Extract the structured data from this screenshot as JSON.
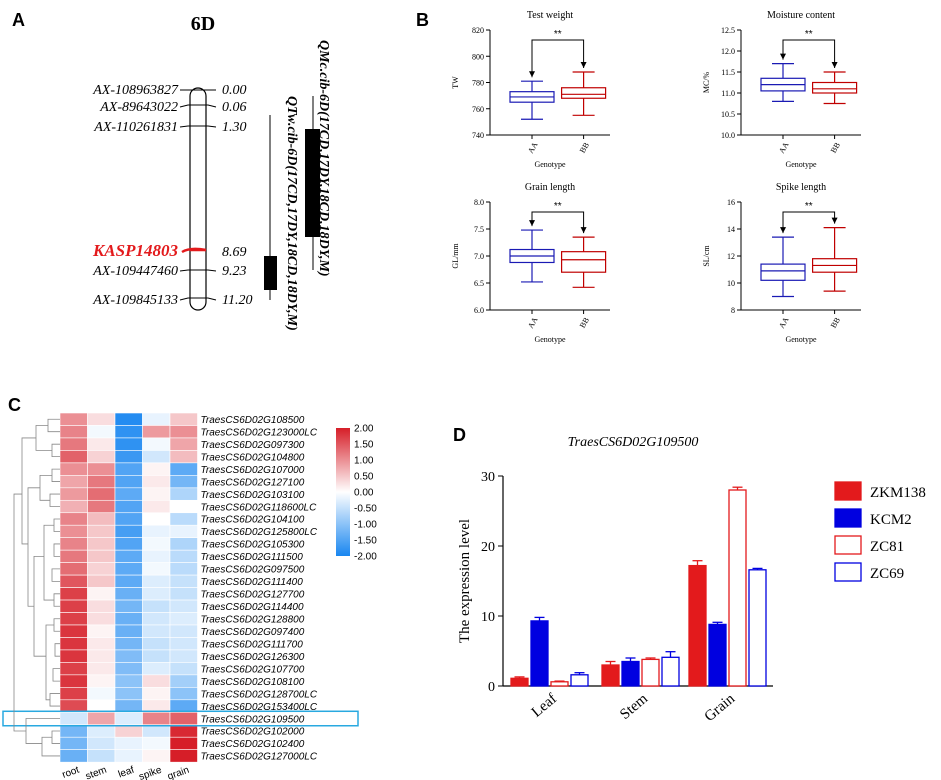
{
  "panel_letters": {
    "a": "A",
    "b": "B",
    "c": "C",
    "d": "D"
  },
  "colors": {
    "red": "#e31a1c",
    "blue": "#0000e0",
    "box_red": "#c00000",
    "box_blue": "#1a1ab4",
    "highlight": "#29a9e0"
  },
  "chart_data": [
    {
      "type": "genetic-map",
      "title": "6D",
      "markers": [
        {
          "name": "AX-108963827",
          "pos": "0.00",
          "highlight": false
        },
        {
          "name": "AX-89643022",
          "pos": "0.06",
          "highlight": false
        },
        {
          "name": "AX-110261831",
          "pos": "1.30",
          "highlight": false
        },
        {
          "name": "KASP14803",
          "pos": "8.69",
          "highlight": true
        },
        {
          "name": "AX-109447460",
          "pos": "9.23",
          "highlight": false
        },
        {
          "name": "AX-109845133",
          "pos": "11.20",
          "highlight": false
        }
      ],
      "qtls": [
        {
          "name": "QTw.cib-6D(17CD,17DY,18CD,18DY,M)"
        },
        {
          "name": "QMc.cib-6D(17CD,17DY,18CD,18DY,M)"
        }
      ]
    },
    {
      "type": "boxplot",
      "title": "Test weight",
      "ylabel": "TW",
      "xlabel": "Genotype",
      "ylim": [
        740,
        820
      ],
      "yticks": [
        740,
        760,
        780,
        800,
        820
      ],
      "ytick_labels": [
        "740",
        "760",
        "780",
        "800",
        "820"
      ],
      "categories": [
        "AA",
        "BB"
      ],
      "significance": "**",
      "groups": [
        {
          "name": "AA",
          "min": 752,
          "q1": 765,
          "median": 769,
          "q3": 773,
          "max": 781
        },
        {
          "name": "BB",
          "min": 755,
          "q1": 768,
          "median": 771,
          "q3": 776,
          "max": 788
        }
      ]
    },
    {
      "type": "boxplot",
      "title": "Moisture content",
      "ylabel": "MC/%",
      "xlabel": "Genotype",
      "ylim": [
        10.0,
        12.5
      ],
      "yticks": [
        10.0,
        10.5,
        11.0,
        11.5,
        12.0,
        12.5
      ],
      "ytick_labels": [
        "10.0",
        "10.5",
        "11.0",
        "11.5",
        "12.0",
        "12.5"
      ],
      "categories": [
        "AA",
        "BB"
      ],
      "significance": "**",
      "groups": [
        {
          "name": "AA",
          "min": 10.8,
          "q1": 11.05,
          "median": 11.2,
          "q3": 11.35,
          "max": 11.7
        },
        {
          "name": "BB",
          "min": 10.75,
          "q1": 11.0,
          "median": 11.1,
          "q3": 11.25,
          "max": 11.5
        }
      ]
    },
    {
      "type": "boxplot",
      "title": "Grain length",
      "ylabel": "GL/mm",
      "xlabel": "Genotype",
      "ylim": [
        6.0,
        8.0
      ],
      "yticks": [
        6.0,
        6.5,
        7.0,
        7.5,
        8.0
      ],
      "ytick_labels": [
        "6.0",
        "6.5",
        "7.0",
        "7.5",
        "8.0"
      ],
      "categories": [
        "AA",
        "BB"
      ],
      "significance": "**",
      "groups": [
        {
          "name": "AA",
          "min": 6.52,
          "q1": 6.88,
          "median": 7.0,
          "q3": 7.12,
          "max": 7.48
        },
        {
          "name": "BB",
          "min": 6.42,
          "q1": 6.7,
          "median": 6.93,
          "q3": 7.08,
          "max": 7.35
        }
      ]
    },
    {
      "type": "boxplot",
      "title": "Spike length",
      "ylabel": "SL/cm",
      "xlabel": "Genotype",
      "ylim": [
        8,
        16
      ],
      "yticks": [
        8,
        10,
        12,
        14,
        16
      ],
      "ytick_labels": [
        "8",
        "10",
        "12",
        "14",
        "16"
      ],
      "categories": [
        "AA",
        "BB"
      ],
      "significance": "**",
      "groups": [
        {
          "name": "AA",
          "min": 9.0,
          "q1": 10.2,
          "median": 10.9,
          "q3": 11.4,
          "max": 13.4
        },
        {
          "name": "BB",
          "min": 9.4,
          "q1": 10.8,
          "median": 11.3,
          "q3": 11.8,
          "max": 14.1
        }
      ]
    },
    {
      "type": "heatmap",
      "columns": [
        "root",
        "stem",
        "leaf",
        "spike",
        "grain"
      ],
      "rows": [
        "TraesCS6D02G108500",
        "TraesCS6D02G123000LC",
        "TraesCS6D02G097300",
        "TraesCS6D02G104800",
        "TraesCS6D02G107000",
        "TraesCS6D02G127100",
        "TraesCS6D02G103100",
        "TraesCS6D02G118600LC",
        "TraesCS6D02G104100",
        "TraesCS6D02G125800LC",
        "TraesCS6D02G105300",
        "TraesCS6D02G111500",
        "TraesCS6D02G097500",
        "TraesCS6D02G111400",
        "TraesCS6D02G127700",
        "TraesCS6D02G114400",
        "TraesCS6D02G128800",
        "TraesCS6D02G097400",
        "TraesCS6D02G111700",
        "TraesCS6D02G126300",
        "TraesCS6D02G107700",
        "TraesCS6D02G108100",
        "TraesCS6D02G128700LC",
        "TraesCS6D02G153400LC",
        "TraesCS6D02G109500",
        "TraesCS6D02G102000",
        "TraesCS6D02G102400",
        "TraesCS6D02G127000LC"
      ],
      "values": [
        [
          1.0,
          0.3,
          -1.9,
          -0.2,
          0.5
        ],
        [
          1.1,
          -0.1,
          -1.8,
          0.9,
          1.0
        ],
        [
          1.2,
          0.2,
          -1.8,
          -0.1,
          0.8
        ],
        [
          1.4,
          0.4,
          -1.7,
          -0.4,
          0.6
        ],
        [
          1.0,
          1.0,
          -1.5,
          0.1,
          -1.4
        ],
        [
          0.8,
          1.2,
          -1.5,
          0.2,
          -1.2
        ],
        [
          0.9,
          1.3,
          -1.4,
          0.1,
          -0.7
        ],
        [
          0.7,
          1.2,
          -1.5,
          0.2,
          0.0
        ],
        [
          1.1,
          0.6,
          -1.5,
          0.0,
          -0.6
        ],
        [
          1.0,
          0.5,
          -1.6,
          -0.2,
          -0.2
        ],
        [
          1.1,
          0.5,
          -1.5,
          -0.1,
          -0.7
        ],
        [
          1.2,
          0.5,
          -1.4,
          -0.2,
          -0.6
        ],
        [
          1.3,
          0.4,
          -1.4,
          -0.1,
          -0.6
        ],
        [
          1.5,
          0.5,
          -1.4,
          -0.3,
          -0.5
        ],
        [
          1.7,
          0.1,
          -1.3,
          -0.3,
          -0.5
        ],
        [
          1.7,
          0.3,
          -1.2,
          -0.5,
          -0.4
        ],
        [
          1.7,
          0.3,
          -1.3,
          -0.4,
          -0.3
        ],
        [
          1.8,
          0.1,
          -1.3,
          -0.4,
          -0.4
        ],
        [
          1.8,
          0.2,
          -1.2,
          -0.5,
          -0.4
        ],
        [
          1.8,
          0.2,
          -1.1,
          -0.5,
          -0.4
        ],
        [
          1.7,
          0.2,
          -1.1,
          -0.3,
          -0.5
        ],
        [
          1.8,
          0.1,
          -1.0,
          0.3,
          -0.8
        ],
        [
          1.7,
          -0.1,
          -1.0,
          0.1,
          -1.0
        ],
        [
          1.6,
          0.0,
          -1.2,
          0.2,
          -1.4
        ],
        [
          -0.4,
          0.8,
          -0.3,
          1.1,
          1.4
        ],
        [
          -1.2,
          -0.3,
          0.4,
          -0.4,
          1.9
        ],
        [
          -1.2,
          -0.4,
          -0.2,
          -0.1,
          2.0
        ],
        [
          -1.3,
          -0.5,
          -0.2,
          0.1,
          2.0
        ]
      ],
      "highlight_row": "TraesCS6D02G109500",
      "colorbar": {
        "ticks": [
          "2.00",
          "1.50",
          "1.00",
          "0.50",
          "0.00",
          "-0.50",
          "-1.00",
          "-1.50",
          "-2.00"
        ],
        "min": -2,
        "max": 2
      }
    },
    {
      "type": "bar",
      "title": "TraesCS6D02G109500",
      "ylabel": "The expression level",
      "ylim": [
        0,
        30
      ],
      "yticks": [
        "0",
        "10",
        "20",
        "30"
      ],
      "categories": [
        "Leaf",
        "Stem",
        "Grain"
      ],
      "series": [
        {
          "name": "ZKM138",
          "style": "filled-red",
          "values": [
            1.1,
            3.0,
            17.2
          ],
          "errors": [
            0.2,
            0.5,
            0.7
          ]
        },
        {
          "name": "KCM2",
          "style": "filled-blue",
          "values": [
            9.3,
            3.5,
            8.8
          ],
          "errors": [
            0.5,
            0.5,
            0.3
          ]
        },
        {
          "name": "ZC81",
          "style": "outline-red",
          "values": [
            0.6,
            3.8,
            28.0
          ],
          "errors": [
            0.1,
            0.2,
            0.4
          ]
        },
        {
          "name": "ZC69",
          "style": "outline-blue",
          "values": [
            1.6,
            4.1,
            16.6
          ],
          "errors": [
            0.3,
            0.8,
            0.2
          ]
        }
      ]
    }
  ]
}
